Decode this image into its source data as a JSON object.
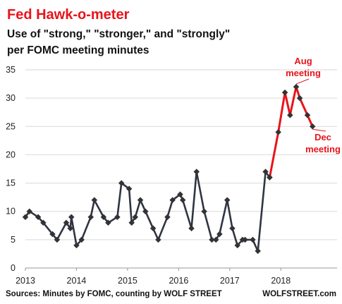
{
  "chart_data": {
    "type": "line",
    "title": "Fed Hawk-o-meter",
    "subtitle_lines": [
      "Use of \"strong,\" \"stronger,\" and \"strongly\"",
      "per FOMC meeting minutes"
    ],
    "xlabel": "",
    "ylabel": "",
    "xlim": [
      2013,
      2019.1
    ],
    "ylim": [
      0,
      35
    ],
    "x_ticks": [
      "2013",
      "2014",
      "2015",
      "2016",
      "2017",
      "2018"
    ],
    "y_ticks": [
      "0",
      "5",
      "10",
      "15",
      "20",
      "25",
      "30",
      "35"
    ],
    "grid": "horizontal",
    "series": [
      {
        "color": "#2f3542",
        "x": [
          2013.0,
          2013.08,
          2013.25,
          2013.35,
          2013.53,
          2013.62,
          2013.8,
          2013.88,
          2013.9,
          2014.0,
          2014.1,
          2014.28,
          2014.35,
          2014.53,
          2014.62,
          2014.8,
          2014.88,
          2015.03,
          2015.08,
          2015.15,
          2015.25,
          2015.35,
          2015.5,
          2015.6,
          2015.78,
          2015.88,
          2016.03,
          2016.08,
          2016.25,
          2016.35,
          2016.5,
          2016.65,
          2016.73,
          2016.8,
          2016.95,
          2017.05,
          2017.15,
          2017.25,
          2017.3,
          2017.45,
          2017.55,
          2017.7,
          2017.78
        ],
        "values": [
          9,
          10,
          9,
          8,
          6,
          5,
          8,
          7,
          9,
          4,
          5,
          9,
          12,
          9,
          8,
          9,
          15,
          14,
          8,
          9,
          12,
          10,
          7,
          5,
          9,
          12,
          13,
          12,
          7,
          17,
          10,
          5,
          5,
          6,
          12,
          7,
          4,
          5,
          5,
          5,
          3,
          17,
          16
        ]
      },
      {
        "color": "#e8141b",
        "x": [
          2017.78,
          2017.95,
          2018.08,
          2018.18,
          2018.3,
          2018.37,
          2018.52,
          2018.62
        ],
        "values": [
          16,
          24,
          31,
          27,
          32,
          30,
          27,
          25
        ]
      }
    ],
    "annotations": [
      {
        "text_lines": [
          "Aug",
          "meeting"
        ],
        "color": "#e8141b",
        "points_to": "2018 peak"
      },
      {
        "text_lines": [
          "Dec",
          "meeting"
        ],
        "color": "#e8141b",
        "points_to": "last point"
      }
    ],
    "source": "Sources: Minutes by FOMC, counting by WOLF STREET",
    "brand": "WOLFSTREET.com"
  }
}
